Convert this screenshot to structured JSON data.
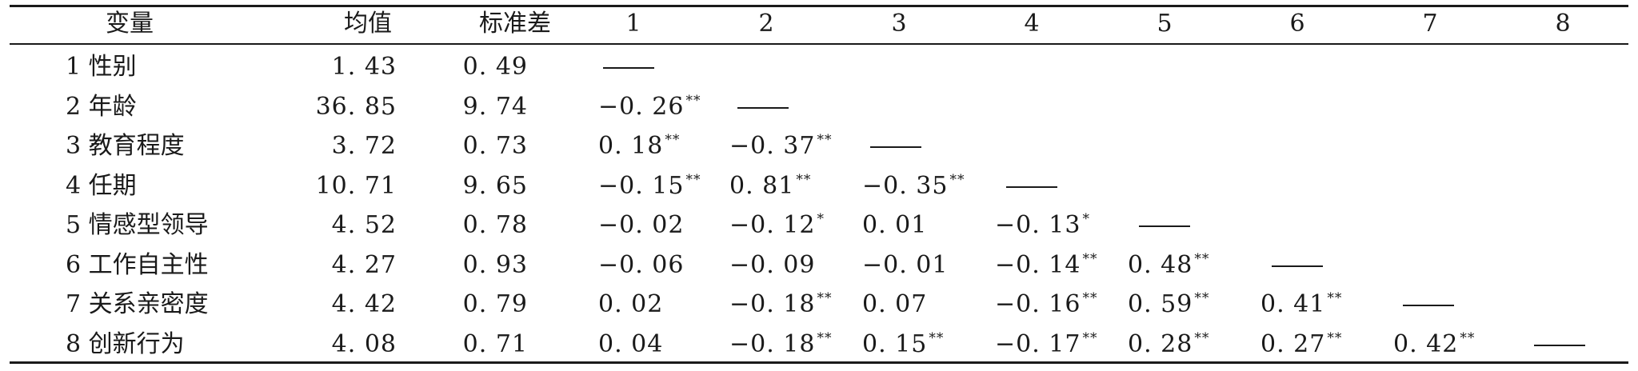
{
  "table": {
    "headers": [
      "变量",
      "均值",
      "标准差",
      "1",
      "2",
      "3",
      "4",
      "5",
      "6",
      "7",
      "8"
    ],
    "rows": [
      {
        "variable": "1 性别",
        "mean": "1. 43",
        "sd": "0. 49",
        "cells": [
          {
            "v": "——",
            "sig": ""
          }
        ]
      },
      {
        "variable": "2 年龄",
        "mean": "36. 85",
        "sd": "9. 74",
        "cells": [
          {
            "v": "−0. 26",
            "sig": "**"
          },
          {
            "v": "——",
            "sig": ""
          }
        ]
      },
      {
        "variable": "3 教育程度",
        "mean": "3. 72",
        "sd": "0. 73",
        "cells": [
          {
            "v": "0. 18",
            "sig": "**"
          },
          {
            "v": "−0. 37",
            "sig": "**"
          },
          {
            "v": "——",
            "sig": ""
          }
        ]
      },
      {
        "variable": "4 任期",
        "mean": "10. 71",
        "sd": "9. 65",
        "cells": [
          {
            "v": "−0. 15",
            "sig": "**"
          },
          {
            "v": "0. 81",
            "sig": "**"
          },
          {
            "v": "−0. 35",
            "sig": "**"
          },
          {
            "v": "——",
            "sig": ""
          }
        ]
      },
      {
        "variable": "5 情感型领导",
        "mean": "4. 52",
        "sd": "0. 78",
        "cells": [
          {
            "v": "−0. 02",
            "sig": ""
          },
          {
            "v": "−0. 12",
            "sig": "*"
          },
          {
            "v": "0. 01",
            "sig": ""
          },
          {
            "v": "−0. 13",
            "sig": "*"
          },
          {
            "v": "——",
            "sig": ""
          }
        ]
      },
      {
        "variable": "6 工作自主性",
        "mean": "4. 27",
        "sd": "0. 93",
        "cells": [
          {
            "v": "−0. 06",
            "sig": ""
          },
          {
            "v": "−0. 09",
            "sig": ""
          },
          {
            "v": "−0. 01",
            "sig": ""
          },
          {
            "v": "−0. 14",
            "sig": "**"
          },
          {
            "v": "0. 48",
            "sig": "**"
          },
          {
            "v": "——",
            "sig": ""
          }
        ]
      },
      {
        "variable": "7 关系亲密度",
        "mean": "4. 42",
        "sd": "0. 79",
        "cells": [
          {
            "v": "0. 02",
            "sig": ""
          },
          {
            "v": "−0. 18",
            "sig": "**"
          },
          {
            "v": "0. 07",
            "sig": ""
          },
          {
            "v": "−0. 16",
            "sig": "**"
          },
          {
            "v": "0. 59",
            "sig": "**"
          },
          {
            "v": "0. 41",
            "sig": "**"
          },
          {
            "v": "——",
            "sig": ""
          }
        ]
      },
      {
        "variable": "8 创新行为",
        "mean": "4. 08",
        "sd": "0. 71",
        "cells": [
          {
            "v": "0. 04",
            "sig": ""
          },
          {
            "v": "−0. 18",
            "sig": "**"
          },
          {
            "v": "0. 15",
            "sig": "**"
          },
          {
            "v": "−0. 17",
            "sig": "**"
          },
          {
            "v": "0. 28",
            "sig": "**"
          },
          {
            "v": "0. 27",
            "sig": "**"
          },
          {
            "v": "0. 42",
            "sig": "**"
          },
          {
            "v": "——",
            "sig": ""
          }
        ]
      }
    ]
  }
}
